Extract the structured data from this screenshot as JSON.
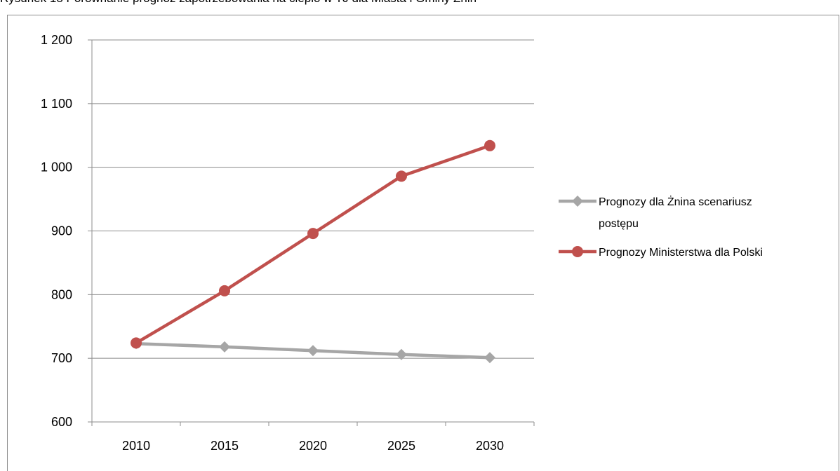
{
  "figure": {
    "caption": "Rysunek 18 Porównanie prognoz zapotrzebowania na ciepło w TJ dla Miasta i Gminy Żnin"
  },
  "chart_data": {
    "type": "line",
    "categories": [
      "2010",
      "2015",
      "2020",
      "2025",
      "2030"
    ],
    "ylim": [
      600,
      1200
    ],
    "yticks": [
      600,
      700,
      800,
      900,
      1000,
      1100,
      1200
    ],
    "ytick_labels": [
      "600",
      "700",
      "800",
      "900",
      "1 000",
      "1 100",
      "1 200"
    ],
    "grid": true,
    "legend_position": "right",
    "series": [
      {
        "name": "Prognozy dla Żnina scenariusz postępu",
        "name_lines": [
          "Prognozy dla Żnina scenariusz",
          "postępu"
        ],
        "values": [
          723,
          718,
          712,
          706,
          701
        ],
        "color": "#a6a6a6",
        "marker": "diamond"
      },
      {
        "name": "Prognozy Ministerstwa dla Polski",
        "name_lines": [
          "Prognozy Ministerstwa dla Polski"
        ],
        "values": [
          724,
          806,
          896,
          986,
          1034
        ],
        "color": "#c0504d",
        "marker": "circle"
      }
    ]
  }
}
